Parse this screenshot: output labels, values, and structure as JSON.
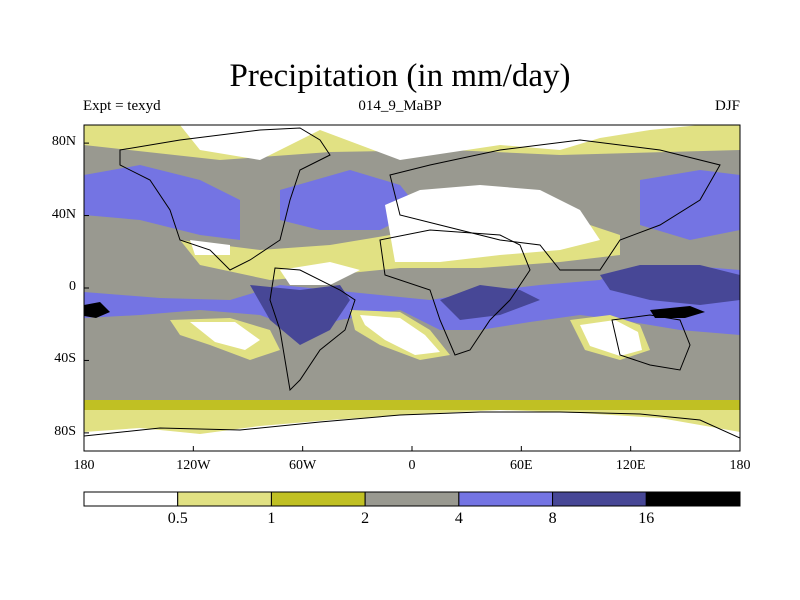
{
  "header": {
    "title": "Precipitation (in mm/day)",
    "left_label": "Expt = texyd",
    "center_label": "014_9_MaBP",
    "right_label": "DJF"
  },
  "axes": {
    "lat_labels": [
      {
        "value": 80,
        "text": "80N"
      },
      {
        "value": 40,
        "text": "40N"
      },
      {
        "value": 0,
        "text": "0"
      },
      {
        "value": -40,
        "text": "40S"
      },
      {
        "value": -80,
        "text": "80S"
      }
    ],
    "lon_labels": [
      {
        "value": -180,
        "text": "180"
      },
      {
        "value": -120,
        "text": "120W"
      },
      {
        "value": -60,
        "text": "60W"
      },
      {
        "value": 0,
        "text": "0"
      },
      {
        "value": 60,
        "text": "60E"
      },
      {
        "value": 120,
        "text": "120E"
      },
      {
        "value": 180,
        "text": "180"
      }
    ]
  },
  "colorbar": {
    "colors": [
      "#ffffff",
      "#e1e183",
      "#c0c023",
      "#999990",
      "#7474e3",
      "#474796",
      "#000000"
    ],
    "levels": [
      {
        "text": "0.5"
      },
      {
        "text": "1"
      },
      {
        "text": "2"
      },
      {
        "text": "4"
      },
      {
        "text": "8"
      },
      {
        "text": "16"
      }
    ]
  }
}
